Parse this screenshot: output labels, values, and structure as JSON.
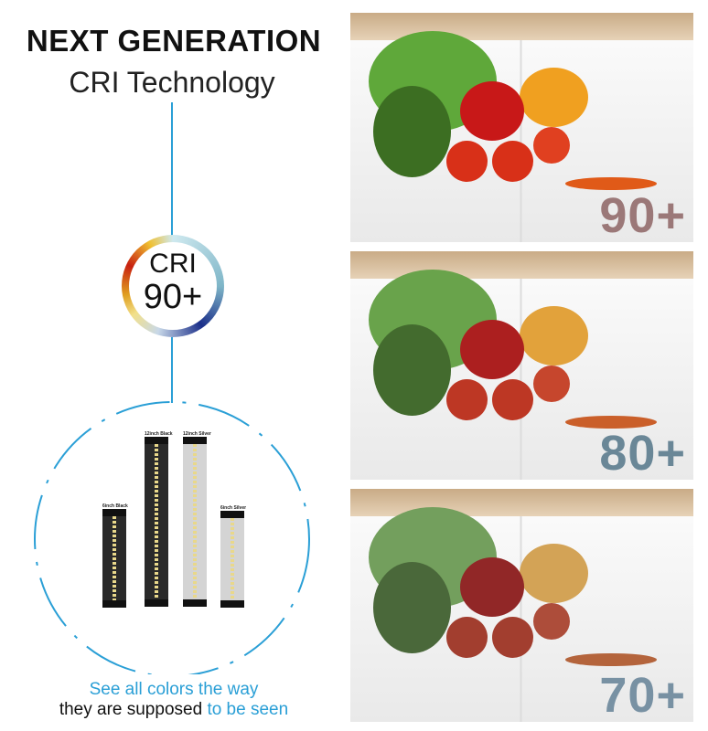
{
  "header": {
    "title": "NEXT GENERATION",
    "subtitle": "CRI Technology"
  },
  "badge": {
    "label": "CRI",
    "value": "90+"
  },
  "products": [
    {
      "label": "6inch Black",
      "color": "#2a2a2a"
    },
    {
      "label": "12inch Black",
      "color": "#2a2a2a"
    },
    {
      "label": "12inch Silver",
      "color": "#d4d4d4"
    },
    {
      "label": "6inch Silver",
      "color": "#d4d4d4"
    }
  ],
  "caption": {
    "line1": "See all colors the way",
    "line2_plain": "they are supposed ",
    "line2_highlight": "to be seen"
  },
  "panels": [
    {
      "cri": "90+",
      "color": "#9b7878",
      "saturation": 1.0
    },
    {
      "cri": "80+",
      "color": "#6a8797",
      "saturation": 0.8
    },
    {
      "cri": "70+",
      "color": "#7891a3",
      "saturation": 0.6
    }
  ],
  "accent": "#2a9fd6"
}
